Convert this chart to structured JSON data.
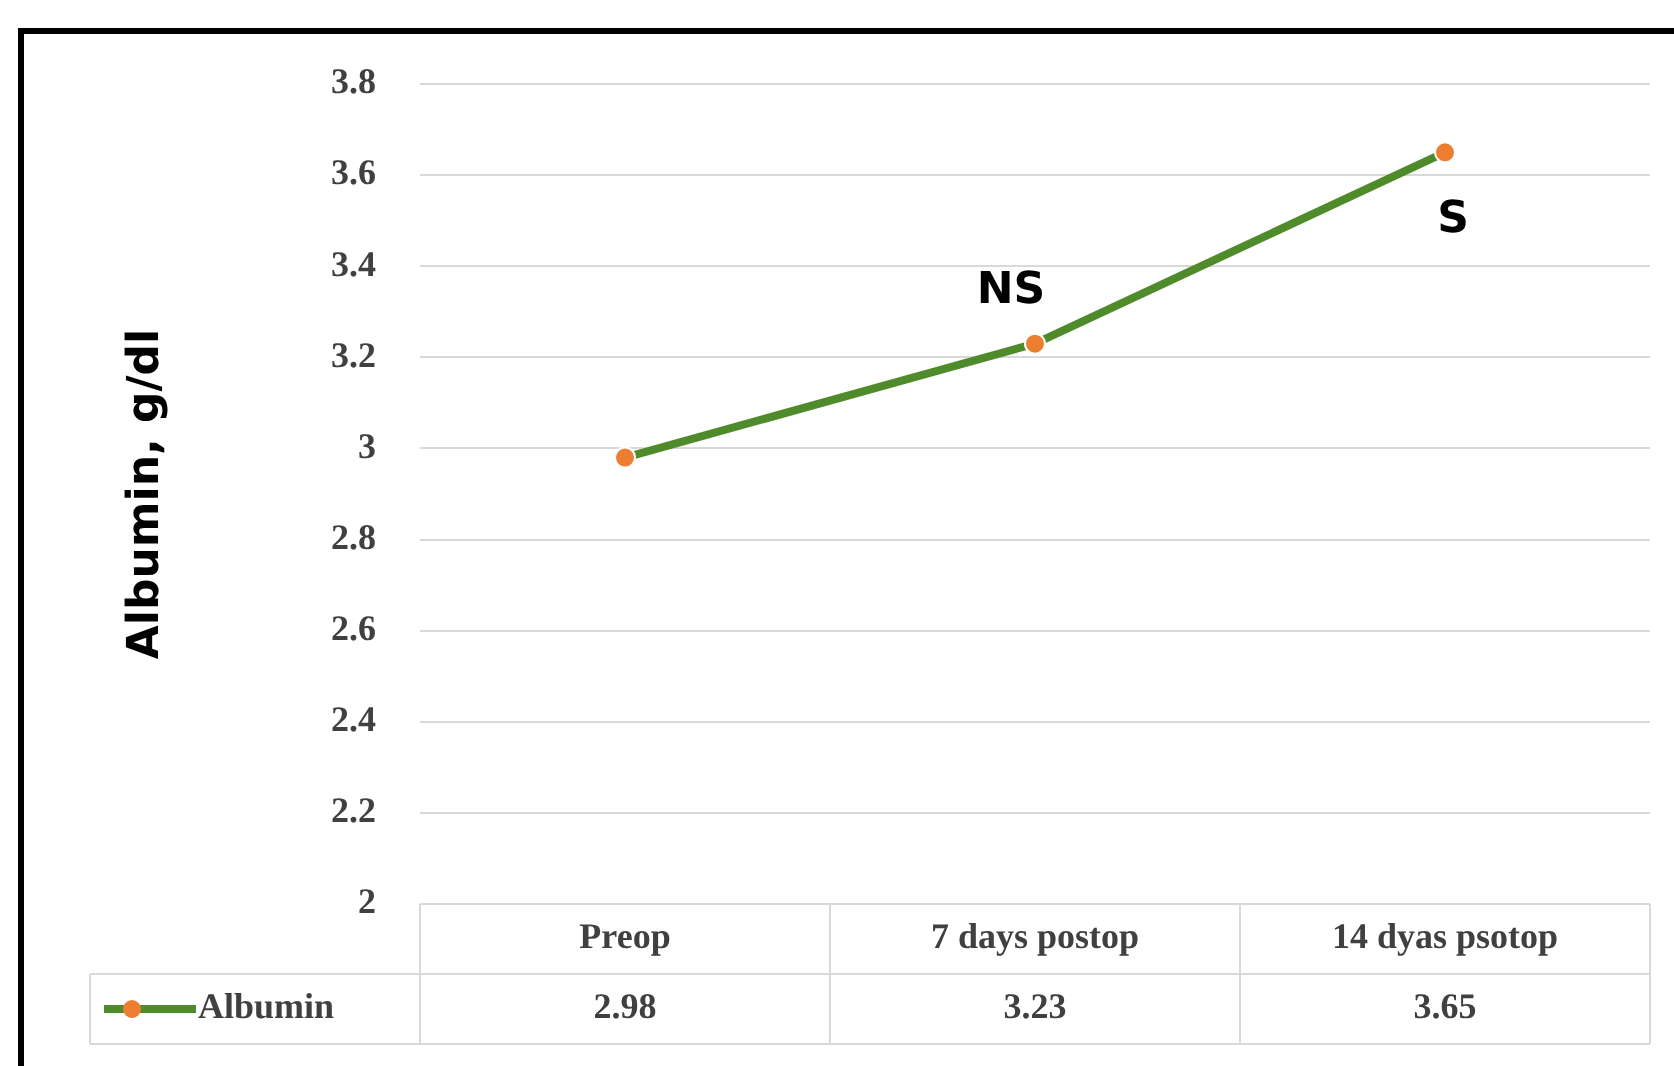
{
  "chart_data": {
    "type": "line",
    "ylabel": "Albumin, g/dl",
    "categories": [
      "Preop",
      "7 days postop",
      "14 dyas psotop"
    ],
    "series": [
      {
        "name": "Albumin",
        "color": "#4f8a2b",
        "colors": [
          "#ed7d31",
          "#ed7d31",
          "#ed7d31"
        ],
        "values": [
          2.98,
          3.23,
          3.65
        ]
      }
    ],
    "ylim": [
      2,
      3.8
    ],
    "yticks": [
      2,
      2.2,
      2.4,
      2.6,
      2.8,
      3,
      3.2,
      3.4,
      3.6,
      3.8
    ],
    "grid": "y",
    "marker": "circle",
    "line_style": "solid",
    "legend": "bottom",
    "data_labels": true,
    "annotations": [
      {
        "text": "NS",
        "x": "7 days postop",
        "y": 3.23
      },
      {
        "text": "S",
        "x": "14 dyas psotop",
        "y": 3.65
      }
    ]
  }
}
